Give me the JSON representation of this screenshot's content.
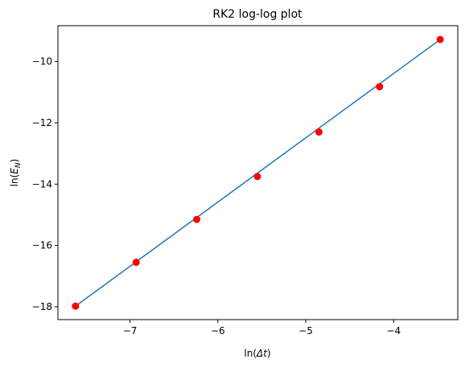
{
  "chart_data": {
    "type": "line",
    "title": "RK2 log-log plot",
    "xlabel": "ln(Δt)",
    "ylabel": "ln(E_N)",
    "xlim": [
      -7.82,
      -3.27
    ],
    "ylim": [
      -18.42,
      -8.83
    ],
    "xticks": [
      -7,
      -6,
      -5,
      -4
    ],
    "yticks": [
      -18,
      -16,
      -14,
      -12,
      -10
    ],
    "xtick_labels": [
      "−7",
      "−6",
      "−5",
      "−4"
    ],
    "ytick_labels": [
      "−18",
      "−16",
      "−14",
      "−12",
      "−10"
    ],
    "grid": false,
    "legend": "none",
    "series": [
      {
        "type": "line",
        "color": "#1f77b4",
        "x": [
          -7.62,
          -3.47
        ],
        "y": [
          -17.98,
          -9.28
        ]
      },
      {
        "type": "scatter",
        "color": "#ff0000",
        "x": [
          -7.62,
          -6.93,
          -6.24,
          -5.55,
          -4.85,
          -4.16,
          -3.47
        ],
        "y": [
          -17.98,
          -16.55,
          -15.15,
          -13.75,
          -12.3,
          -10.82,
          -9.28
        ]
      }
    ]
  }
}
